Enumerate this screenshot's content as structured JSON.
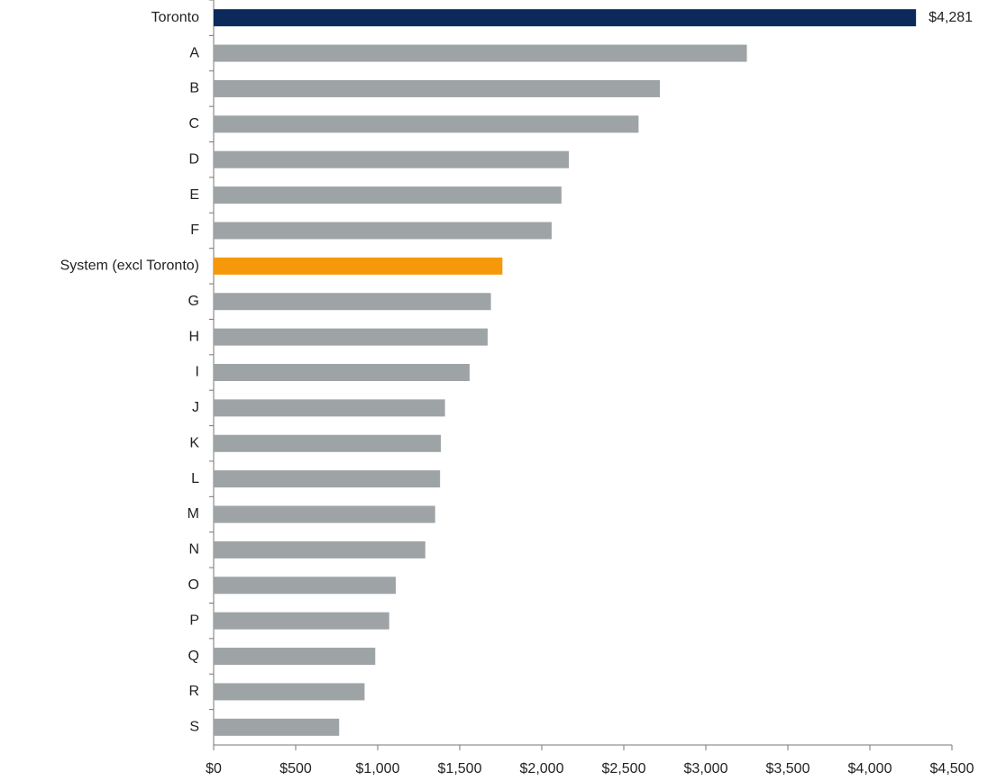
{
  "chart_data": {
    "type": "barh",
    "categories": [
      "Toronto",
      "A",
      "B",
      "C",
      "D",
      "E",
      "F",
      "System (excl Toronto)",
      "G",
      "H",
      "I",
      "J",
      "K",
      "L",
      "M",
      "N",
      "O",
      "P",
      "Q",
      "R",
      "S"
    ],
    "values": [
      4281,
      3250,
      2720,
      2590,
      2165,
      2120,
      2060,
      1760,
      1690,
      1670,
      1560,
      1410,
      1385,
      1380,
      1350,
      1290,
      1110,
      1070,
      985,
      920,
      765
    ],
    "value_labels": [
      "$4,281",
      null,
      null,
      null,
      null,
      null,
      null,
      null,
      null,
      null,
      null,
      null,
      null,
      null,
      null,
      null,
      null,
      null,
      null,
      null,
      null
    ],
    "colors": [
      "#0b2a5b",
      "#9ea3a6",
      "#9ea3a6",
      "#9ea3a6",
      "#9ea3a6",
      "#9ea3a6",
      "#9ea3a6",
      "#f5980a",
      "#9ea3a6",
      "#9ea3a6",
      "#9ea3a6",
      "#9ea3a6",
      "#9ea3a6",
      "#9ea3a6",
      "#9ea3a6",
      "#9ea3a6",
      "#9ea3a6",
      "#9ea3a6",
      "#9ea3a6",
      "#9ea3a6",
      "#9ea3a6"
    ],
    "xlim": [
      0,
      4500
    ],
    "xticks": [
      {
        "value": 0,
        "label": "$0"
      },
      {
        "value": 500,
        "label": "$500"
      },
      {
        "value": 1000,
        "label": "$1,000"
      },
      {
        "value": 1500,
        "label": "$1,500"
      },
      {
        "value": 2000,
        "label": "$2,000"
      },
      {
        "value": 2500,
        "label": "$2,500"
      },
      {
        "value": 3000,
        "label": "$3,000"
      },
      {
        "value": 3500,
        "label": "$3,500"
      },
      {
        "value": 4000,
        "label": "$4,000"
      },
      {
        "value": 4500,
        "label": "$4,500"
      }
    ],
    "grid": false
  }
}
